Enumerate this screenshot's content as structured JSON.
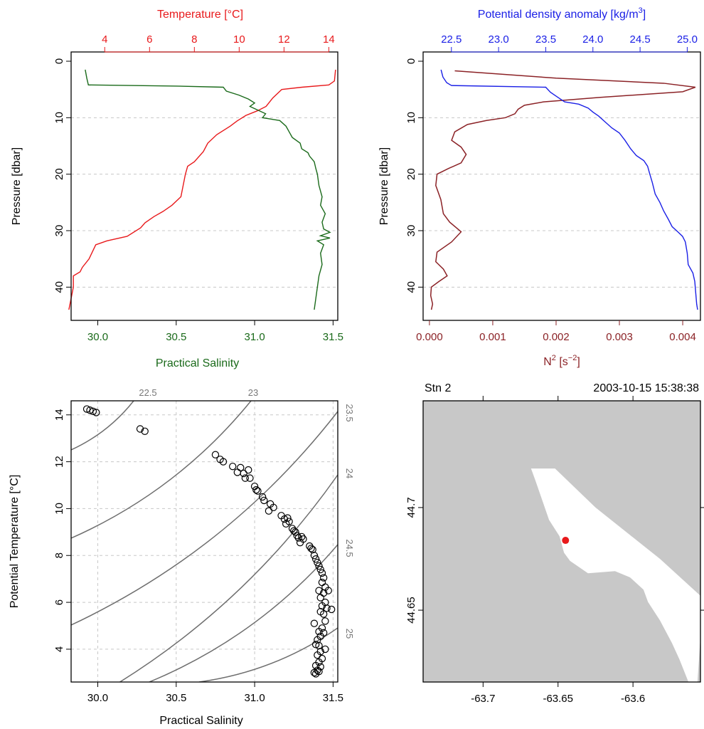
{
  "chart_data": [
    {
      "id": "profile_ts",
      "type": "line",
      "top_axis": {
        "label": "Temperature [°C]",
        "ticks": [
          4,
          6,
          8,
          10,
          12,
          14
        ],
        "lim": [
          2.5,
          14.4
        ],
        "color": "#e8191b"
      },
      "bottom_axis": {
        "label": "Practical Salinity",
        "ticks": [
          "30.0",
          "30.5",
          "31.0",
          "31.5"
        ],
        "lim": [
          29.83,
          31.53
        ],
        "color": "#1a6a1a"
      },
      "y_axis": {
        "label": "Pressure [dbar]",
        "ticks": [
          0,
          10,
          20,
          30,
          40
        ],
        "lim": [
          45,
          0
        ],
        "grid": [
          10,
          20,
          30,
          40
        ]
      },
      "series": [
        {
          "name": "Temperature",
          "color": "#e8191b",
          "points": [
            [
              14.3,
              1.5
            ],
            [
              14.25,
              3.5
            ],
            [
              14.0,
              4.2
            ],
            [
              12.8,
              4.6
            ],
            [
              11.9,
              5.0
            ],
            [
              11.5,
              6.5
            ],
            [
              11.2,
              8.0
            ],
            [
              10.8,
              8.8
            ],
            [
              10.3,
              9.6
            ],
            [
              9.9,
              10.6
            ],
            [
              9.6,
              11.5
            ],
            [
              9.0,
              13.0
            ],
            [
              8.6,
              14.5
            ],
            [
              8.4,
              16.0
            ],
            [
              8.0,
              17.8
            ],
            [
              7.7,
              18.6
            ],
            [
              7.6,
              20.0
            ],
            [
              7.5,
              22.0
            ],
            [
              7.4,
              24.0
            ],
            [
              7.0,
              25.5
            ],
            [
              6.6,
              26.6
            ],
            [
              6.2,
              27.5
            ],
            [
              5.8,
              28.6
            ],
            [
              5.6,
              29.5
            ],
            [
              5.0,
              31.0
            ],
            [
              4.1,
              31.8
            ],
            [
              3.6,
              32.5
            ],
            [
              3.3,
              35.0
            ],
            [
              3.0,
              36.5
            ],
            [
              2.9,
              37.3
            ],
            [
              2.6,
              38.0
            ],
            [
              2.6,
              40.0
            ],
            [
              2.5,
              42.0
            ],
            [
              2.4,
              44.0
            ]
          ]
        },
        {
          "name": "Practical Salinity",
          "color": "#1a6a1a",
          "points": [
            [
              29.92,
              1.5
            ],
            [
              29.93,
              3.0
            ],
            [
              29.94,
              4.2
            ],
            [
              30.5,
              4.4
            ],
            [
              30.8,
              4.6
            ],
            [
              30.82,
              5.3
            ],
            [
              30.9,
              6.0
            ],
            [
              30.96,
              6.7
            ],
            [
              31.0,
              7.4
            ],
            [
              30.97,
              8.0
            ],
            [
              31.07,
              9.3
            ],
            [
              31.05,
              10.0
            ],
            [
              31.16,
              10.5
            ],
            [
              31.2,
              11.5
            ],
            [
              31.22,
              12.5
            ],
            [
              31.24,
              13.5
            ],
            [
              31.29,
              14.5
            ],
            [
              31.3,
              15.5
            ],
            [
              31.34,
              16.2
            ],
            [
              31.35,
              16.8
            ],
            [
              31.38,
              17.8
            ],
            [
              31.39,
              19.0
            ],
            [
              31.4,
              20.0
            ],
            [
              31.41,
              22.0
            ],
            [
              31.43,
              24.0
            ],
            [
              31.42,
              25.5
            ],
            [
              31.45,
              27.0
            ],
            [
              31.43,
              28.5
            ],
            [
              31.44,
              29.7
            ],
            [
              31.48,
              30.3
            ],
            [
              31.42,
              30.9
            ],
            [
              31.48,
              31.3
            ],
            [
              31.4,
              31.8
            ],
            [
              31.44,
              32.5
            ],
            [
              31.42,
              34.0
            ],
            [
              31.43,
              36.0
            ],
            [
              31.41,
              38.0
            ],
            [
              31.4,
              40.0
            ],
            [
              31.39,
              42.0
            ],
            [
              31.38,
              44.0
            ]
          ]
        }
      ]
    },
    {
      "id": "profile_density",
      "type": "line",
      "top_axis": {
        "label": "Potential density anomaly [kg/m",
        "label_sup": "3",
        "label_end": "]",
        "ticks": [
          "22.5",
          "23.0",
          "23.5",
          "24.0",
          "24.5",
          "25.0"
        ],
        "lim": [
          22.2,
          25.14
        ],
        "color": "#1b20e6"
      },
      "bottom_axis": {
        "label": "N",
        "label_sup": "2",
        "label_end": " [s",
        "label_sup2": "−2",
        "label_close": "]",
        "ticks": [
          "0.000",
          "0.001",
          "0.002",
          "0.003",
          "0.004"
        ],
        "lim": [
          -0.0001,
          0.00428
        ],
        "color": "#8b2226"
      },
      "y_axis": {
        "label": "Pressure [dbar]",
        "ticks": [
          0,
          10,
          20,
          30,
          40
        ],
        "lim": [
          45,
          0
        ],
        "grid": [
          10,
          20,
          30,
          40
        ]
      },
      "series": [
        {
          "name": "Potential density anomaly",
          "color": "#1b20e6",
          "points": [
            [
              22.39,
              1.5
            ],
            [
              22.41,
              2.8
            ],
            [
              22.45,
              3.8
            ],
            [
              22.5,
              4.3
            ],
            [
              23.5,
              4.6
            ],
            [
              23.55,
              5.5
            ],
            [
              23.62,
              6.3
            ],
            [
              23.7,
              7.2
            ],
            [
              23.85,
              7.6
            ],
            [
              23.95,
              8.3
            ],
            [
              24.0,
              9.0
            ],
            [
              24.06,
              9.7
            ],
            [
              24.12,
              10.6
            ],
            [
              24.2,
              11.8
            ],
            [
              24.28,
              12.7
            ],
            [
              24.34,
              14.0
            ],
            [
              24.4,
              15.5
            ],
            [
              24.46,
              16.7
            ],
            [
              24.54,
              17.6
            ],
            [
              24.58,
              18.6
            ],
            [
              24.6,
              19.8
            ],
            [
              24.63,
              21.5
            ],
            [
              24.66,
              23.5
            ],
            [
              24.71,
              25.0
            ],
            [
              24.75,
              26.5
            ],
            [
              24.8,
              28.0
            ],
            [
              24.84,
              29.3
            ],
            [
              24.9,
              30.2
            ],
            [
              24.95,
              31.0
            ],
            [
              24.98,
              32.0
            ],
            [
              25.0,
              34.0
            ],
            [
              25.01,
              36.0
            ],
            [
              25.06,
              37.5
            ],
            [
              25.08,
              39.0
            ],
            [
              25.09,
              41.0
            ],
            [
              25.1,
              43.0
            ],
            [
              25.11,
              44.0
            ]
          ]
        },
        {
          "name": "N2",
          "color": "#8b2226",
          "points": [
            [
              0.0004,
              1.7
            ],
            [
              0.002,
              3.0
            ],
            [
              0.0037,
              3.9
            ],
            [
              0.0042,
              4.6
            ],
            [
              0.004,
              5.4
            ],
            [
              0.0027,
              6.4
            ],
            [
              0.0018,
              7.2
            ],
            [
              0.0015,
              7.8
            ],
            [
              0.0014,
              8.5
            ],
            [
              0.00135,
              9.3
            ],
            [
              0.0012,
              10.0
            ],
            [
              0.0009,
              10.5
            ],
            [
              0.0006,
              11.2
            ],
            [
              0.0004,
              12.5
            ],
            [
              0.00035,
              14.0
            ],
            [
              0.0005,
              15.2
            ],
            [
              0.00058,
              16.5
            ],
            [
              0.0005,
              18.0
            ],
            [
              0.0003,
              19.0
            ],
            [
              0.00012,
              20.0
            ],
            [
              0.0001,
              22.0
            ],
            [
              0.00018,
              24.5
            ],
            [
              0.00022,
              27.0
            ],
            [
              0.00032,
              28.5
            ],
            [
              0.0005,
              30.2
            ],
            [
              0.00035,
              32.0
            ],
            [
              0.00012,
              33.8
            ],
            [
              0.0001,
              35.5
            ],
            [
              0.00022,
              36.8
            ],
            [
              0.00028,
              38.0
            ],
            [
              0.00015,
              39.0
            ],
            [
              3e-05,
              40.0
            ],
            [
              2e-05,
              41.5
            ],
            [
              5e-05,
              43.0
            ],
            [
              3e-05,
              44.0
            ]
          ]
        }
      ]
    },
    {
      "id": "ts_diagram",
      "type": "scatter",
      "xlabel": "Practical Salinity",
      "ylabel": "Potential Temperature [°C]",
      "x_ticks": [
        "30.0",
        "30.5",
        "31.0",
        "31.5"
      ],
      "y_ticks": [
        4,
        6,
        8,
        10,
        12,
        14
      ],
      "xlim": [
        29.83,
        31.53
      ],
      "ylim": [
        2.6,
        14.6
      ],
      "isopycnals": [
        "22.5",
        "23",
        "23.5",
        "24",
        "24.5",
        "25"
      ],
      "points": [
        [
          29.93,
          14.25
        ],
        [
          29.95,
          14.2
        ],
        [
          29.97,
          14.15
        ],
        [
          29.99,
          14.1
        ],
        [
          30.27,
          13.4
        ],
        [
          30.3,
          13.3
        ],
        [
          30.75,
          12.3
        ],
        [
          30.78,
          12.1
        ],
        [
          30.8,
          12.0
        ],
        [
          30.86,
          11.8
        ],
        [
          30.89,
          11.55
        ],
        [
          30.91,
          11.75
        ],
        [
          30.93,
          11.5
        ],
        [
          30.94,
          11.3
        ],
        [
          30.96,
          11.65
        ],
        [
          30.97,
          11.3
        ],
        [
          31.0,
          10.95
        ],
        [
          31.01,
          10.8
        ],
        [
          31.02,
          10.75
        ],
        [
          31.05,
          10.5
        ],
        [
          31.06,
          10.35
        ],
        [
          31.09,
          9.9
        ],
        [
          31.1,
          10.2
        ],
        [
          31.12,
          10.05
        ],
        [
          31.17,
          9.7
        ],
        [
          31.19,
          9.55
        ],
        [
          31.2,
          9.35
        ],
        [
          31.21,
          9.6
        ],
        [
          31.22,
          9.45
        ],
        [
          31.24,
          9.15
        ],
        [
          31.25,
          9.05
        ],
        [
          31.26,
          9.0
        ],
        [
          31.27,
          8.85
        ],
        [
          31.28,
          8.75
        ],
        [
          31.29,
          8.55
        ],
        [
          31.3,
          8.8
        ],
        [
          31.31,
          8.7
        ],
        [
          31.35,
          8.4
        ],
        [
          31.36,
          8.3
        ],
        [
          31.37,
          8.25
        ],
        [
          31.38,
          8.0
        ],
        [
          31.39,
          7.85
        ],
        [
          31.4,
          7.7
        ],
        [
          31.41,
          7.55
        ],
        [
          31.42,
          7.4
        ],
        [
          31.43,
          7.25
        ],
        [
          31.44,
          7.05
        ],
        [
          31.43,
          6.85
        ],
        [
          31.45,
          6.65
        ],
        [
          31.41,
          6.5
        ],
        [
          31.44,
          6.4
        ],
        [
          31.47,
          6.5
        ],
        [
          31.42,
          6.2
        ],
        [
          31.45,
          6.0
        ],
        [
          31.43,
          5.85
        ],
        [
          31.46,
          5.75
        ],
        [
          31.49,
          5.7
        ],
        [
          31.42,
          5.6
        ],
        [
          31.44,
          5.5
        ],
        [
          31.38,
          5.1
        ],
        [
          31.45,
          5.2
        ],
        [
          31.43,
          4.9
        ],
        [
          31.41,
          4.75
        ],
        [
          31.44,
          4.7
        ],
        [
          31.42,
          4.55
        ],
        [
          31.4,
          4.4
        ],
        [
          31.39,
          4.2
        ],
        [
          31.41,
          4.15
        ],
        [
          31.45,
          4.0
        ],
        [
          31.42,
          3.9
        ],
        [
          31.4,
          3.75
        ],
        [
          31.43,
          3.6
        ],
        [
          31.41,
          3.45
        ],
        [
          31.39,
          3.3
        ],
        [
          31.42,
          3.25
        ],
        [
          31.4,
          3.1
        ],
        [
          31.38,
          3.0
        ],
        [
          31.41,
          3.05
        ],
        [
          31.39,
          2.95
        ]
      ]
    },
    {
      "id": "map",
      "type": "map",
      "station": "Stn 2",
      "datetime": "2003-10-15 15:38:38",
      "x_ticks": [
        "-63.7",
        "-63.65",
        "-63.6"
      ],
      "y_ticks": [
        "44.7",
        "44.65"
      ],
      "xlim": [
        -63.74,
        -63.555
      ],
      "ylim": [
        44.615,
        44.752
      ],
      "land_color": "#c8c8c8",
      "water_color": "#ffffff",
      "station_lon": -63.645,
      "station_lat": 44.684,
      "station_color": "#e8191b",
      "water_polygon": [
        [
          -63.668,
          44.719
        ],
        [
          -63.652,
          44.719
        ],
        [
          -63.625,
          44.7
        ],
        [
          -63.582,
          44.675
        ],
        [
          -63.555,
          44.657
        ],
        [
          -63.555,
          44.637
        ],
        [
          -63.557,
          44.615
        ],
        [
          -63.563,
          44.615
        ],
        [
          -63.569,
          44.626
        ],
        [
          -63.574,
          44.634
        ],
        [
          -63.582,
          44.645
        ],
        [
          -63.59,
          44.654
        ],
        [
          -63.593,
          44.66
        ],
        [
          -63.602,
          44.666
        ],
        [
          -63.612,
          44.669
        ],
        [
          -63.63,
          44.668
        ],
        [
          -63.642,
          44.674
        ],
        [
          -63.646,
          44.678
        ],
        [
          -63.649,
          44.686
        ],
        [
          -63.656,
          44.694
        ],
        [
          -63.665,
          44.713
        ]
      ]
    }
  ]
}
